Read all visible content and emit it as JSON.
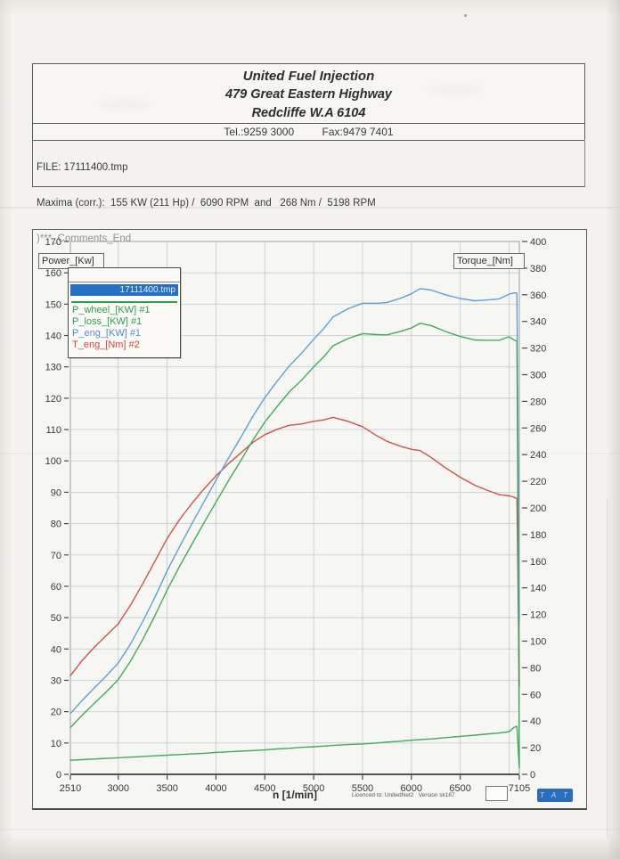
{
  "header": {
    "line1": "United Fuel Injection",
    "line2": "479 Great Eastern Highway",
    "line3": "Redcliffe W.A 6104",
    "tel": "Tel.:9259 3000",
    "fax": "Fax:9479 7401"
  },
  "file_info": {
    "file": "FILE: 17111400.tmp",
    "maxima": "Maxima (corr.):  155 KW (211 Hp) /  6090 RPM  and   268 Nm /  5198 RPM",
    "comments": ")***_Comments_End"
  },
  "legend": {
    "title": "17111400.tmp",
    "items": [
      {
        "label": "P_wheel_[KW] #1",
        "color": "#2f9e4f"
      },
      {
        "label": "P_loss_[KW] #1",
        "color": "#2f9e4f"
      },
      {
        "label": "P_eng_[KW] #1",
        "color": "#4d8fd2"
      },
      {
        "label": "T_eng_[Nm] #2",
        "color": "#d5443c"
      }
    ]
  },
  "footer": {
    "licence": "Licenced to: UnitedNet2   Version sk187",
    "tat": "T A T"
  },
  "chart_data": {
    "type": "line",
    "title": "",
    "xlabel": "n [1/min]",
    "x_range": [
      2510,
      7105
    ],
    "x_ticks": [
      2510,
      3000,
      3500,
      4000,
      4500,
      5000,
      5500,
      6000,
      6500,
      7105
    ],
    "grid_x": {
      "start": 3000,
      "step": 500,
      "end": 7000
    },
    "left_axis": {
      "label": "Power_[Kw]",
      "min": 0,
      "max": 170,
      "step": 10
    },
    "right_axis": {
      "label": "Torque_[Nm]",
      "min": 0,
      "max": 400,
      "step": 20
    },
    "grid": true,
    "legend_position": "top-left",
    "x": [
      2510,
      2625,
      2750,
      2875,
      3000,
      3125,
      3250,
      3375,
      3500,
      3625,
      3750,
      3875,
      4000,
      4125,
      4250,
      4375,
      4500,
      4625,
      4750,
      4875,
      5000,
      5100,
      5198,
      5350,
      5500,
      5650,
      5750,
      5900,
      6000,
      6090,
      6200,
      6350,
      6500,
      6650,
      6750,
      6900,
      7000,
      7050,
      7080,
      7105
    ],
    "series": [
      {
        "name": "T_eng_[Nm] #2",
        "axis": "right",
        "color": "#cd4a45",
        "values": [
          74,
          85,
          95,
          104,
          113,
          127,
          143,
          160,
          177,
          191,
          203,
          214,
          224,
          233,
          241,
          249,
          255,
          259,
          262,
          263,
          265,
          266,
          268,
          265,
          261,
          254,
          250,
          246,
          244,
          243,
          238,
          230,
          223,
          217,
          214,
          210,
          209,
          208,
          207,
          66
        ]
      },
      {
        "name": "P_eng_[KW] #1",
        "axis": "left",
        "color": "#5b9bd0",
        "values": [
          19.4,
          23.4,
          27.4,
          31.3,
          35.5,
          41.6,
          48.7,
          56.5,
          64.9,
          72.5,
          79.7,
          86.8,
          93.8,
          100.7,
          107.3,
          114.1,
          120.2,
          125.4,
          130.3,
          134.3,
          138.8,
          142.1,
          145.9,
          148.5,
          150.3,
          150.3,
          150.5,
          152,
          153.3,
          155,
          154.5,
          153,
          151.8,
          151.1,
          151.3,
          151.7,
          153.2,
          153.6,
          153.5,
          49
        ]
      },
      {
        "name": "P_wheel_[KW] #1",
        "axis": "left",
        "color": "#3ba552",
        "values": [
          14.9,
          18.7,
          22.5,
          26.2,
          30.2,
          36.1,
          43,
          50.6,
          58.8,
          66.2,
          73.2,
          80.1,
          86.8,
          93.5,
          99.9,
          106.5,
          112.4,
          117.3,
          122,
          125.7,
          130,
          133.1,
          136.7,
          139,
          140.6,
          140.3,
          140.2,
          141.4,
          142.4,
          143.9,
          143.2,
          141.3,
          139.7,
          138.6,
          138.5,
          138.5,
          139.6,
          138.6,
          138.2,
          3
        ]
      },
      {
        "name": "P_loss_[KW] #1",
        "axis": "left",
        "color": "#3ba552",
        "values": [
          4.5,
          4.7,
          4.9,
          5.1,
          5.3,
          5.5,
          5.7,
          5.9,
          6.1,
          6.3,
          6.5,
          6.7,
          7,
          7.2,
          7.4,
          7.6,
          7.8,
          8.1,
          8.3,
          8.6,
          8.8,
          9,
          9.2,
          9.5,
          9.7,
          10,
          10.3,
          10.6,
          10.9,
          11.1,
          11.3,
          11.7,
          12.1,
          12.5,
          12.8,
          13.2,
          13.6,
          15,
          15.3,
          2
        ]
      }
    ],
    "maxima_annotation": "155 KW (211 Hp) / 6090 RPM and 268 Nm / 5198 RPM"
  }
}
